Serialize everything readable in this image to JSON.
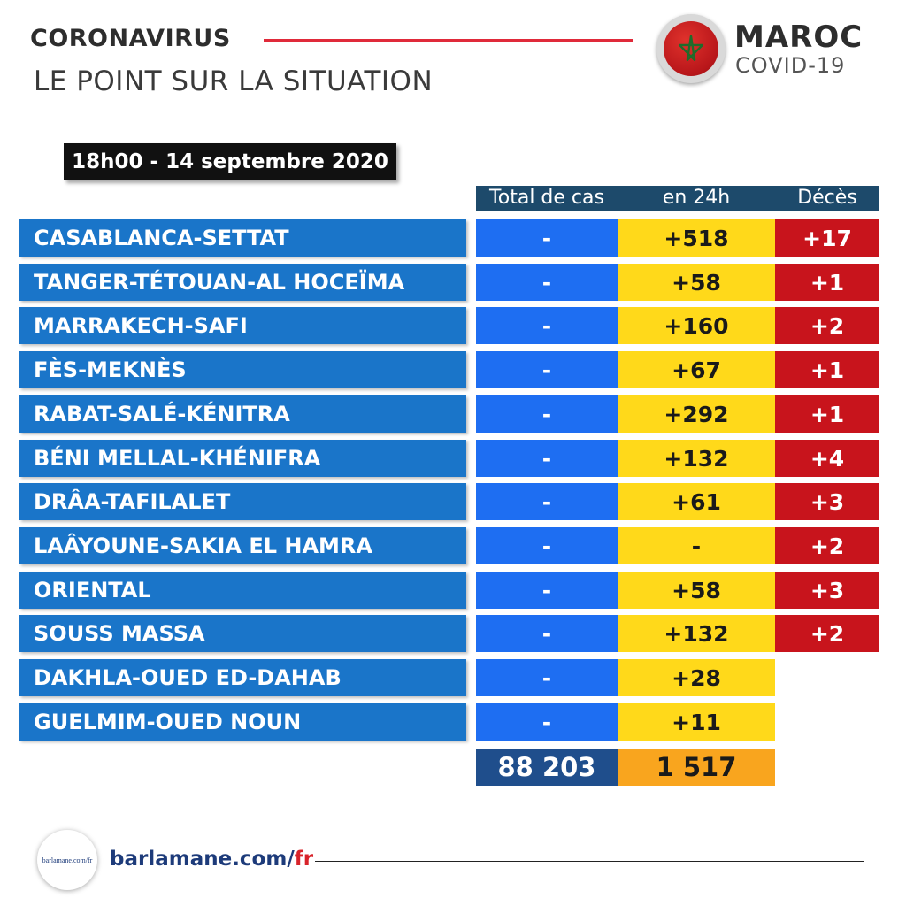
{
  "header": {
    "title": "CORONAVIRUS",
    "subtitle": "LE POINT SUR LA SITUATION",
    "brand_title": "MAROC",
    "brand_sub": "COVID-19",
    "title_line_color": "#e02a3a"
  },
  "flag_icon": "morocco-flag-star",
  "date": "18h00  - 14 septembre 2020",
  "columns": {
    "total": "Total de cas",
    "h24": "en 24h",
    "deces": "Décès"
  },
  "rows": [
    {
      "region": "CASABLANCA-SETTAT",
      "total": "-",
      "h24": "+518",
      "deces": "+17"
    },
    {
      "region": "TANGER-TÉTOUAN-AL HOCEÏMA",
      "total": "-",
      "h24": "+58",
      "deces": "+1"
    },
    {
      "region": "MARRAKECH-SAFI",
      "total": "-",
      "h24": "+160",
      "deces": "+2"
    },
    {
      "region": "FÈS-MEKNÈS",
      "total": "-",
      "h24": "+67",
      "deces": "+1"
    },
    {
      "region": "RABAT-SALÉ-KÉNITRA",
      "total": "-",
      "h24": "+292",
      "deces": "+1"
    },
    {
      "region": "BÉNI MELLAL-KHÉNIFRA",
      "total": "-",
      "h24": "+132",
      "deces": "+4"
    },
    {
      "region": "DRÂA-TAFILALET",
      "total": "-",
      "h24": "+61",
      "deces": "+3"
    },
    {
      "region": "LAÂYOUNE-SAKIA EL HAMRA",
      "total": "-",
      "h24": "-",
      "deces": "+2"
    },
    {
      "region": "ORIENTAL",
      "total": "-",
      "h24": "+58",
      "deces": "+3"
    },
    {
      "region": "SOUSS MASSA",
      "total": "-",
      "h24": "+132",
      "deces": "+2"
    },
    {
      "region": "DAKHLA-OUED ED-DAHAB",
      "total": "-",
      "h24": "+28",
      "deces": ""
    },
    {
      "region": "GUELMIM-OUED NOUN",
      "total": "-",
      "h24": "+11",
      "deces": ""
    }
  ],
  "totals": {
    "total": "88 203",
    "h24": "1 517"
  },
  "footer": {
    "logo_text": "barlamane.com/fr",
    "url_main": "barlamane.com/",
    "url_accent": "fr"
  },
  "colors": {
    "region": "#1a75c9",
    "total": "#1e6ef2",
    "h24": "#ffd91a",
    "deces": "#c8141c",
    "header_bar": "#1d4a6b",
    "sum_total": "#1f4e8c",
    "sum_h24": "#f9a51e"
  }
}
